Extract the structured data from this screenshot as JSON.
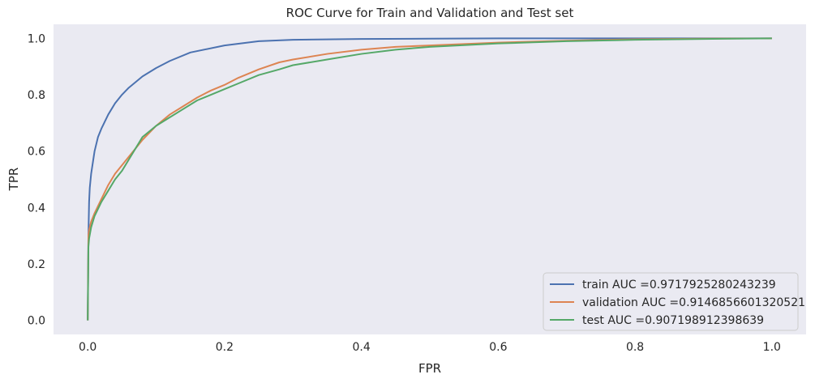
{
  "chart_data": {
    "type": "line",
    "title": "ROC Curve for Train and Validation and Test set",
    "xlabel": "FPR",
    "ylabel": "TPR",
    "xlim": [
      -0.05,
      1.05
    ],
    "ylim": [
      -0.05,
      1.05
    ],
    "xticks": [
      0.0,
      0.2,
      0.4,
      0.6,
      0.8,
      1.0
    ],
    "yticks": [
      0.0,
      0.2,
      0.4,
      0.6,
      0.8,
      1.0
    ],
    "xtick_labels": [
      "0.0",
      "0.2",
      "0.4",
      "0.6",
      "0.8",
      "1.0"
    ],
    "ytick_labels": [
      "0.0",
      "0.2",
      "0.4",
      "0.6",
      "0.8",
      "1.0"
    ],
    "grid": false,
    "background": "#eaeaf2",
    "legend_position": "lower-right",
    "series": [
      {
        "name": "train AUC =0.9717925280243239",
        "color": "#4c72b0",
        "x": [
          0,
          0.001,
          0.002,
          0.003,
          0.005,
          0.01,
          0.015,
          0.02,
          0.03,
          0.04,
          0.05,
          0.06,
          0.08,
          0.1,
          0.12,
          0.15,
          0.2,
          0.25,
          0.3,
          0.4,
          0.5,
          0.6,
          0.7,
          0.8,
          0.9,
          1.0
        ],
        "y": [
          0,
          0.3,
          0.42,
          0.47,
          0.52,
          0.6,
          0.65,
          0.68,
          0.73,
          0.77,
          0.8,
          0.825,
          0.865,
          0.895,
          0.92,
          0.95,
          0.975,
          0.99,
          0.995,
          0.998,
          0.999,
          1.0,
          1.0,
          1.0,
          1.0,
          1.0
        ]
      },
      {
        "name": "validation AUC =0.9146856601320521",
        "color": "#dd8452",
        "x": [
          0,
          0.001,
          0.002,
          0.005,
          0.01,
          0.02,
          0.03,
          0.04,
          0.05,
          0.06,
          0.07,
          0.08,
          0.1,
          0.12,
          0.14,
          0.16,
          0.18,
          0.2,
          0.22,
          0.25,
          0.28,
          0.3,
          0.35,
          0.4,
          0.45,
          0.5,
          0.6,
          0.7,
          0.8,
          0.9,
          1.0
        ],
        "y": [
          0,
          0.3,
          0.32,
          0.35,
          0.38,
          0.43,
          0.48,
          0.52,
          0.55,
          0.58,
          0.61,
          0.64,
          0.69,
          0.73,
          0.76,
          0.79,
          0.815,
          0.835,
          0.86,
          0.89,
          0.915,
          0.925,
          0.945,
          0.96,
          0.97,
          0.975,
          0.985,
          0.992,
          0.997,
          0.999,
          1.0
        ]
      },
      {
        "name": "test AUC =0.907198912398639",
        "color": "#55a868",
        "x": [
          0,
          0.001,
          0.002,
          0.005,
          0.01,
          0.02,
          0.03,
          0.04,
          0.05,
          0.06,
          0.07,
          0.08,
          0.1,
          0.12,
          0.14,
          0.16,
          0.18,
          0.2,
          0.22,
          0.25,
          0.28,
          0.3,
          0.35,
          0.4,
          0.45,
          0.5,
          0.6,
          0.7,
          0.8,
          0.9,
          1.0
        ],
        "y": [
          0,
          0.26,
          0.29,
          0.33,
          0.37,
          0.42,
          0.46,
          0.5,
          0.53,
          0.57,
          0.61,
          0.65,
          0.69,
          0.72,
          0.75,
          0.78,
          0.8,
          0.82,
          0.84,
          0.87,
          0.89,
          0.905,
          0.925,
          0.945,
          0.96,
          0.97,
          0.982,
          0.99,
          0.995,
          0.998,
          1.0
        ]
      }
    ]
  }
}
